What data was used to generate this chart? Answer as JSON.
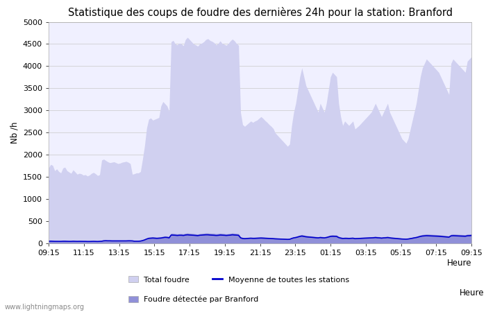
{
  "title": "Statistique des coups de foudre des dernières 24h pour la station: Branford",
  "xlabel": "Heure",
  "ylabel": "Nb /h",
  "ylim": [
    0,
    5000
  ],
  "yticks": [
    0,
    500,
    1000,
    1500,
    2000,
    2500,
    3000,
    3500,
    4000,
    4500,
    5000
  ],
  "xtick_labels": [
    "09:15",
    "11:15",
    "13:15",
    "15:15",
    "17:15",
    "19:15",
    "21:15",
    "23:15",
    "01:15",
    "03:15",
    "05:15",
    "07:15",
    "09:15"
  ],
  "watermark": "www.lightningmaps.org",
  "bg_color": "#ffffff",
  "plot_bg_color": "#f0f0ff",
  "grid_color": "#c8c8c8",
  "fill_total_color": "#d0d0f0",
  "fill_detected_color": "#9090d8",
  "line_mean_color": "#0000cc",
  "title_fontsize": 10.5,
  "axis_fontsize": 8.5,
  "tick_fontsize": 8,
  "legend_fontsize": 8,
  "total_foudre": [
    1700,
    1780,
    1760,
    1640,
    1680,
    1620,
    1590,
    1700,
    1720,
    1640,
    1610,
    1580,
    1660,
    1610,
    1560,
    1580,
    1570,
    1540,
    1550,
    1520,
    1540,
    1580,
    1600,
    1570,
    1530,
    1550,
    1880,
    1900,
    1870,
    1840,
    1820,
    1830,
    1840,
    1820,
    1800,
    1810,
    1830,
    1840,
    1850,
    1830,
    1800,
    1560,
    1570,
    1590,
    1590,
    1620,
    1900,
    2200,
    2600,
    2800,
    2830,
    2780,
    2800,
    2820,
    2840,
    3100,
    3200,
    3150,
    3100,
    2980,
    4550,
    4580,
    4500,
    4480,
    4520,
    4500,
    4460,
    4600,
    4650,
    4600,
    4550,
    4500,
    4480,
    4450,
    4500,
    4520,
    4550,
    4600,
    4620,
    4580,
    4560,
    4530,
    4480,
    4510,
    4570,
    4510,
    4490,
    4470,
    4510,
    4570,
    4610,
    4570,
    4510,
    4470,
    2950,
    2680,
    2640,
    2680,
    2720,
    2760,
    2730,
    2760,
    2780,
    2820,
    2860,
    2820,
    2770,
    2730,
    2680,
    2640,
    2590,
    2490,
    2440,
    2390,
    2340,
    2290,
    2240,
    2190,
    2240,
    2660,
    2960,
    3160,
    3460,
    3760,
    3960,
    3760,
    3560,
    3460,
    3360,
    3260,
    3160,
    3060,
    2960,
    3160,
    3060,
    2960,
    3160,
    3460,
    3760,
    3860,
    3810,
    3760,
    3160,
    2860,
    2660,
    2760,
    2710,
    2660,
    2710,
    2760,
    2580,
    2620,
    2660,
    2710,
    2760,
    2810,
    2860,
    2910,
    2960,
    3060,
    3160,
    3060,
    2960,
    2860,
    2960,
    3060,
    3160,
    2960,
    2860,
    2760,
    2660,
    2560,
    2460,
    2360,
    2310,
    2260,
    2360,
    2560,
    2760,
    2960,
    3160,
    3460,
    3760,
    3960,
    4060,
    4160,
    4110,
    4060,
    4010,
    3960,
    3910,
    3860,
    3760,
    3660,
    3560,
    3460,
    3360,
    4060,
    4160,
    4110,
    4060,
    4010,
    3960,
    3910,
    3860,
    4110,
    4160,
    4210
  ],
  "detected_branford": [
    55,
    65,
    58,
    52,
    53,
    48,
    48,
    58,
    58,
    52,
    48,
    48,
    57,
    52,
    48,
    53,
    48,
    48,
    48,
    43,
    43,
    48,
    53,
    48,
    43,
    48,
    58,
    68,
    72,
    68,
    68,
    62,
    62,
    62,
    62,
    58,
    58,
    62,
    62,
    68,
    68,
    62,
    52,
    52,
    52,
    55,
    78,
    98,
    118,
    138,
    142,
    148,
    142,
    138,
    142,
    148,
    158,
    168,
    163,
    153,
    228,
    223,
    218,
    213,
    218,
    218,
    213,
    228,
    233,
    228,
    223,
    218,
    213,
    208,
    218,
    223,
    228,
    233,
    233,
    228,
    226,
    223,
    216,
    220,
    228,
    223,
    218,
    213,
    218,
    226,
    233,
    228,
    223,
    216,
    148,
    133,
    128,
    133,
    136,
    138,
    136,
    138,
    140,
    143,
    146,
    143,
    138,
    136,
    133,
    130,
    128,
    123,
    120,
    118,
    116,
    113,
    110,
    108,
    110,
    133,
    148,
    158,
    173,
    188,
    198,
    188,
    178,
    173,
    168,
    163,
    158,
    153,
    148,
    158,
    153,
    148,
    158,
    173,
    188,
    193,
    190,
    188,
    158,
    143,
    133,
    138,
    136,
    133,
    136,
    138,
    128,
    130,
    133,
    136,
    138,
    140,
    143,
    146,
    148,
    153,
    158,
    153,
    148,
    143,
    148,
    153,
    158,
    148,
    143,
    138,
    133,
    128,
    123,
    118,
    116,
    113,
    118,
    128,
    138,
    148,
    158,
    173,
    188,
    198,
    203,
    208,
    206,
    203,
    200,
    198,
    196,
    193,
    188,
    183,
    178,
    173,
    168,
    203,
    208,
    206,
    203,
    200,
    198,
    196,
    193,
    206,
    208,
    213
  ],
  "mean_all": [
    48,
    50,
    48,
    46,
    46,
    45,
    45,
    48,
    48,
    46,
    45,
    45,
    48,
    46,
    45,
    46,
    45,
    45,
    45,
    43,
    43,
    45,
    46,
    45,
    43,
    45,
    48,
    58,
    60,
    58,
    58,
    56,
    56,
    56,
    56,
    55,
    55,
    56,
    56,
    58,
    58,
    56,
    48,
    48,
    48,
    52,
    63,
    78,
    98,
    113,
    116,
    120,
    116,
    113,
    116,
    120,
    128,
    136,
    133,
    124,
    188,
    186,
    183,
    178,
    183,
    183,
    178,
    188,
    193,
    188,
    186,
    183,
    178,
    174,
    183,
    186,
    188,
    193,
    193,
    188,
    186,
    183,
    178,
    181,
    188,
    186,
    183,
    178,
    183,
    186,
    193,
    188,
    186,
    181,
    124,
    110,
    106,
    110,
    113,
    116,
    113,
    113,
    116,
    118,
    120,
    118,
    116,
    113,
    110,
    108,
    106,
    102,
    100,
    98,
    96,
    94,
    92,
    90,
    92,
    110,
    124,
    131,
    143,
    156,
    165,
    156,
    148,
    143,
    140,
    136,
    131,
    126,
    124,
    131,
    126,
    124,
    131,
    143,
    156,
    160,
    158,
    156,
    131,
    118,
    110,
    113,
    113,
    110,
    113,
    116,
    106,
    108,
    110,
    113,
    116,
    118,
    120,
    122,
    124,
    126,
    131,
    126,
    124,
    118,
    124,
    126,
    131,
    124,
    118,
    114,
    110,
    106,
    102,
    98,
    96,
    94,
    98,
    106,
    114,
    124,
    131,
    143,
    156,
    165,
    169,
    173,
    171,
    169,
    166,
    165,
    163,
    160,
    156,
    152,
    148,
    143,
    140,
    169,
    173,
    171,
    169,
    166,
    165,
    163,
    160,
    171,
    173,
    177
  ]
}
